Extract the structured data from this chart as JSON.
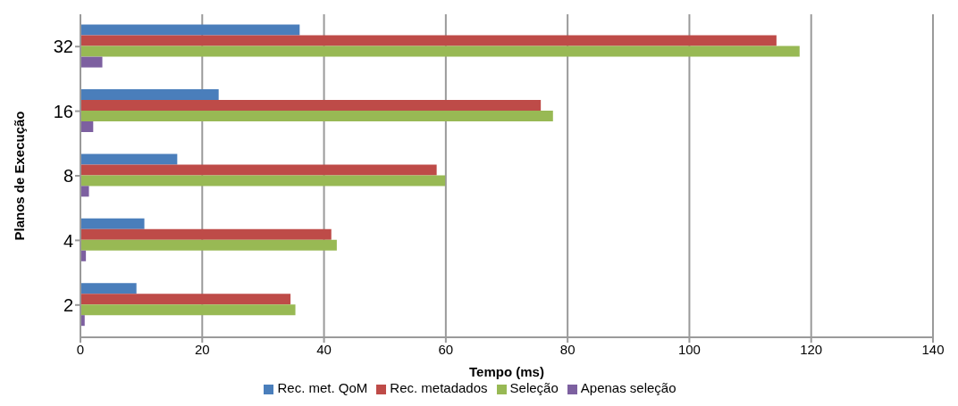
{
  "chart_data": {
    "type": "bar",
    "orientation": "horizontal",
    "xlabel": "Tempo (ms)",
    "ylabel": "Planos de Execução",
    "categories": [
      "32",
      "16",
      "8",
      "4",
      "2"
    ],
    "series": [
      {
        "name": "Rec. met. QoM",
        "color": "#4a7ebb",
        "values": [
          36.0,
          22.7,
          15.9,
          10.5,
          9.2
        ]
      },
      {
        "name": "Rec. metadados",
        "color": "#be4b48",
        "values": [
          114.3,
          75.6,
          58.5,
          41.2,
          34.5
        ]
      },
      {
        "name": "Seleção",
        "color": "#98b954",
        "values": [
          118.1,
          77.6,
          59.9,
          42.1,
          35.3
        ]
      },
      {
        "name": "Apenas seleção",
        "color": "#7d60a0",
        "values": [
          3.6,
          2.1,
          1.4,
          0.9,
          0.7
        ]
      }
    ],
    "xlim": [
      0,
      140
    ],
    "xticks": [
      0,
      20,
      40,
      60,
      80,
      100,
      120,
      140
    ],
    "grid": "x",
    "legend": "bottom"
  }
}
